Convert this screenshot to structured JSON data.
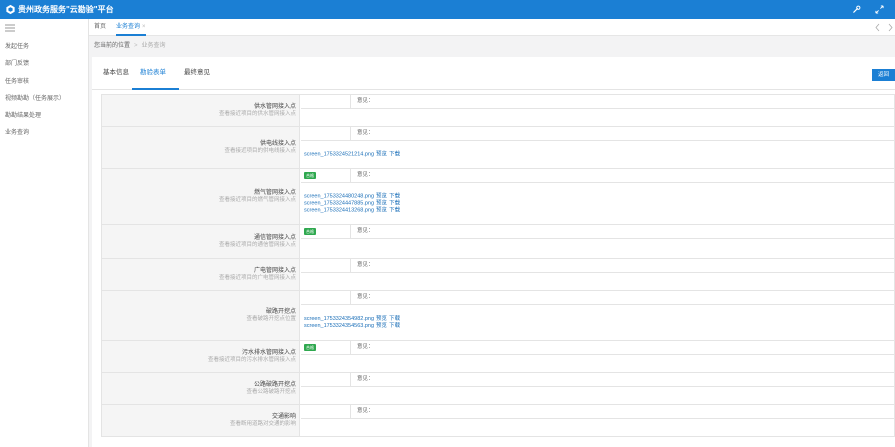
{
  "app": {
    "title": "贵州政务服务\"云勘验\"平台"
  },
  "sidebar": {
    "items": [
      {
        "label": "发起任务"
      },
      {
        "label": "部门反馈"
      },
      {
        "label": "任务审核"
      },
      {
        "label": "视频勘勘（任务展示）"
      },
      {
        "label": "勘勘结果处理"
      },
      {
        "label": "业务查询"
      }
    ]
  },
  "tabs": [
    {
      "label": "首页"
    },
    {
      "label": "业务查询",
      "close": "×"
    }
  ],
  "breadcrumb": {
    "prefix": "您当前的位置",
    "separator": ">",
    "current": "业务查询"
  },
  "subtabs": [
    {
      "label": "基本信息"
    },
    {
      "label": "勘验表单"
    },
    {
      "label": "最终意见"
    }
  ],
  "back_label": "返回",
  "opinion_label": "意见：",
  "preview_label": "预览",
  "download_label": "下载",
  "rows": [
    {
      "title": "供水管网接入点",
      "desc": "查看接近项目的供水管网接入点",
      "badge": "",
      "files": []
    },
    {
      "title": "供电线接入点",
      "desc": "查看接近项目的供电线接入点",
      "badge": "",
      "files": [
        "screen_1753324521214.png"
      ]
    },
    {
      "title": "燃气管网接入点",
      "desc": "查看接近项目的燃气管网接入点",
      "badge": "合格",
      "files": [
        "screen_1753324480248.png",
        "screen_1753324447885.png",
        "screen_1753324413268.png"
      ]
    },
    {
      "title": "通信管网接入点",
      "desc": "查看接近项目的通信管网接入点",
      "badge": "合格",
      "files": []
    },
    {
      "title": "广电管网接入点",
      "desc": "查看接近项目的广电管网接入点",
      "badge": "",
      "files": []
    },
    {
      "title": "破路开挖点",
      "desc": "查看破路开挖点位置",
      "badge": "",
      "files": [
        "screen_1753324354982.png",
        "screen_1753324354563.png"
      ]
    },
    {
      "title": "污水排水管网接入点",
      "desc": "查看接近项目的污水排水管网接入点",
      "badge": "合格",
      "files": []
    },
    {
      "title": "公路破路开挖点",
      "desc": "查看公路破路开挖点",
      "badge": "",
      "files": []
    },
    {
      "title": "交通影响",
      "desc": "查看断用道路对交通的影响",
      "badge": "",
      "files": []
    }
  ]
}
